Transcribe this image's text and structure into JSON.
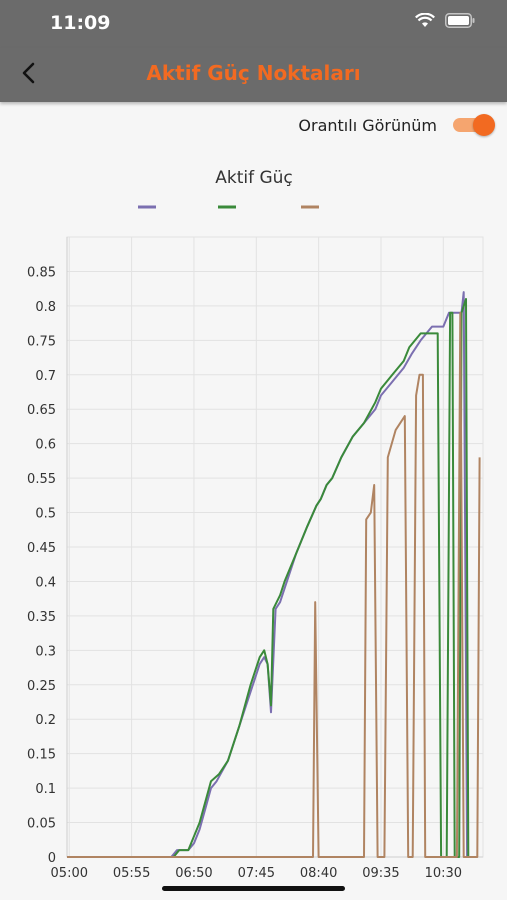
{
  "status": {
    "time": "11:09"
  },
  "header": {
    "title": "Aktif Güç Noktaları",
    "back_icon": "chevron-left-icon"
  },
  "toggle": {
    "label": "Orantılı Görünüm",
    "on": true
  },
  "colors": {
    "accent": "#f26a21",
    "bar": "#6b6b6b"
  },
  "chart_data": {
    "type": "line",
    "title": "Aktif Güç",
    "xlabel": "",
    "ylabel": "",
    "grid": true,
    "legend": "top",
    "ylim": [
      0,
      0.9
    ],
    "xlim": [
      "04:58",
      "11:05"
    ],
    "yticks": [
      "0",
      "0.05",
      "0.1",
      "0.15",
      "0.2",
      "0.25",
      "0.3",
      "0.35",
      "0.4",
      "0.45",
      "0.5",
      "0.55",
      "0.6",
      "0.65",
      "0.7",
      "0.75",
      "0.8",
      "0.85"
    ],
    "xticks": [
      "05:00",
      "05:55",
      "06:50",
      "07:45",
      "08:40",
      "09:35",
      "10:30"
    ],
    "series": [
      {
        "color": "#7b6fb0",
        "points": [
          [
            "04:58",
            0
          ],
          [
            "06:30",
            0
          ],
          [
            "06:35",
            0.01
          ],
          [
            "06:45",
            0.01
          ],
          [
            "06:50",
            0.02
          ],
          [
            "06:55",
            0.04
          ],
          [
            "07:00",
            0.07
          ],
          [
            "07:05",
            0.1
          ],
          [
            "07:10",
            0.11
          ],
          [
            "07:20",
            0.14
          ],
          [
            "07:30",
            0.19
          ],
          [
            "07:40",
            0.24
          ],
          [
            "07:48",
            0.28
          ],
          [
            "07:52",
            0.29
          ],
          [
            "07:55",
            0.28
          ],
          [
            "07:58",
            0.21
          ],
          [
            "08:02",
            0.36
          ],
          [
            "08:06",
            0.37
          ],
          [
            "08:10",
            0.39
          ],
          [
            "08:12",
            0.4
          ],
          [
            "08:20",
            0.44
          ],
          [
            "08:30",
            0.48
          ],
          [
            "08:38",
            0.51
          ],
          [
            "08:42",
            0.52
          ],
          [
            "08:47",
            0.54
          ],
          [
            "08:52",
            0.55
          ],
          [
            "09:00",
            0.58
          ],
          [
            "09:10",
            0.61
          ],
          [
            "09:20",
            0.63
          ],
          [
            "09:30",
            0.65
          ],
          [
            "09:35",
            0.67
          ],
          [
            "09:45",
            0.69
          ],
          [
            "09:55",
            0.71
          ],
          [
            "10:02",
            0.73
          ],
          [
            "10:10",
            0.75
          ],
          [
            "10:20",
            0.77
          ],
          [
            "10:30",
            0.77
          ],
          [
            "10:35",
            0.79
          ],
          [
            "10:40",
            0.79
          ],
          [
            "10:43",
            0.79
          ],
          [
            "10:46",
            0.79
          ],
          [
            "10:48",
            0.82
          ],
          [
            "10:51",
            0.0
          ]
        ]
      },
      {
        "color": "#3a8a3a",
        "points": [
          [
            "04:58",
            0
          ],
          [
            "06:32",
            0
          ],
          [
            "06:37",
            0.01
          ],
          [
            "06:45",
            0.01
          ],
          [
            "06:50",
            0.03
          ],
          [
            "06:55",
            0.05
          ],
          [
            "07:00",
            0.08
          ],
          [
            "07:05",
            0.11
          ],
          [
            "07:12",
            0.12
          ],
          [
            "07:20",
            0.14
          ],
          [
            "07:30",
            0.19
          ],
          [
            "07:40",
            0.25
          ],
          [
            "07:48",
            0.29
          ],
          [
            "07:52",
            0.3
          ],
          [
            "07:55",
            0.28
          ],
          [
            "07:58",
            0.22
          ],
          [
            "08:00",
            0.36
          ],
          [
            "08:03",
            0.37
          ],
          [
            "08:06",
            0.38
          ],
          [
            "08:10",
            0.4
          ],
          [
            "08:20",
            0.44
          ],
          [
            "08:30",
            0.48
          ],
          [
            "08:38",
            0.51
          ],
          [
            "08:42",
            0.52
          ],
          [
            "08:47",
            0.54
          ],
          [
            "08:52",
            0.55
          ],
          [
            "09:00",
            0.58
          ],
          [
            "09:10",
            0.61
          ],
          [
            "09:20",
            0.63
          ],
          [
            "09:30",
            0.66
          ],
          [
            "09:35",
            0.68
          ],
          [
            "09:45",
            0.7
          ],
          [
            "09:55",
            0.72
          ],
          [
            "10:00",
            0.74
          ],
          [
            "10:10",
            0.76
          ],
          [
            "10:15",
            0.76
          ],
          [
            "10:25",
            0.76
          ],
          [
            "10:28",
            0.0
          ],
          [
            "10:33",
            0.0
          ],
          [
            "10:36",
            0.79
          ],
          [
            "10:38",
            0.79
          ],
          [
            "10:40",
            0.0
          ],
          [
            "10:44",
            0.0
          ],
          [
            "10:46",
            0.79
          ],
          [
            "10:50",
            0.81
          ],
          [
            "10:52",
            0.0
          ]
        ]
      },
      {
        "color": "#b08462",
        "points": [
          [
            "04:58",
            0
          ],
          [
            "08:35",
            0
          ],
          [
            "08:37",
            0.37
          ],
          [
            "08:40",
            0.0
          ],
          [
            "09:20",
            0.0
          ],
          [
            "09:22",
            0.49
          ],
          [
            "09:26",
            0.5
          ],
          [
            "09:29",
            0.54
          ],
          [
            "09:32",
            0.0
          ],
          [
            "09:38",
            0.0
          ],
          [
            "09:41",
            0.58
          ],
          [
            "09:48",
            0.62
          ],
          [
            "09:56",
            0.64
          ],
          [
            "09:59",
            0.0
          ],
          [
            "10:03",
            0.0
          ],
          [
            "10:06",
            0.67
          ],
          [
            "10:09",
            0.7
          ],
          [
            "10:12",
            0.7
          ],
          [
            "10:14",
            0.0
          ],
          [
            "10:42",
            0.0
          ],
          [
            "10:45",
            0.79
          ],
          [
            "10:48",
            0.0
          ],
          [
            "11:00",
            0.0
          ],
          [
            "11:02",
            0.58
          ]
        ]
      }
    ]
  }
}
